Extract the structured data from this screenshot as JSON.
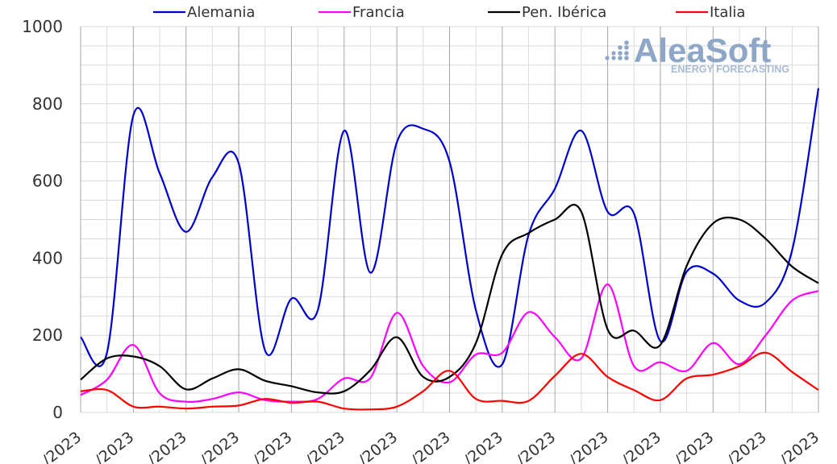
{
  "watermark": {
    "brand": "AleaSoft",
    "tagline": "ENERGY FORECASTING",
    "color": "#8fa7c6"
  },
  "chart_data": {
    "type": "line",
    "title": "",
    "xlabel": "",
    "ylabel": "",
    "ylim": [
      0,
      1000
    ],
    "yticks": [
      0,
      200,
      400,
      600,
      800,
      1000
    ],
    "grid": true,
    "legend_position": "top",
    "x_tick_labels": [
      "/2023",
      "/2023",
      "/2023",
      "/2023",
      "/2023",
      "/2023",
      "/2023",
      "/2023",
      "/2023",
      "/2023",
      "/2023",
      "/2023",
      "/2023",
      "/2023",
      "/2023"
    ],
    "series": [
      {
        "name": "Alemania",
        "color": "#0000cc",
        "values": [
          195,
          155,
          770,
          620,
          468,
          610,
          645,
          160,
          295,
          265,
          730,
          362,
          700,
          735,
          650,
          265,
          125,
          460,
          580,
          730,
          520,
          515,
          185,
          365,
          360,
          290,
          285,
          420,
          840
        ]
      },
      {
        "name": "Francia",
        "color": "#ff00ff",
        "values": [
          45,
          85,
          175,
          50,
          28,
          35,
          52,
          32,
          28,
          35,
          88,
          90,
          258,
          120,
          78,
          150,
          155,
          260,
          195,
          140,
          332,
          120,
          130,
          108,
          180,
          125,
          200,
          290,
          315
        ]
      },
      {
        "name": "Pen. Ibérica",
        "color": "#000000",
        "values": [
          85,
          140,
          145,
          120,
          60,
          88,
          112,
          82,
          68,
          52,
          55,
          110,
          195,
          92,
          92,
          180,
          410,
          465,
          500,
          520,
          215,
          212,
          175,
          380,
          490,
          500,
          450,
          378,
          335
        ]
      },
      {
        "name": "Italia",
        "color": "#ff0000",
        "values": [
          55,
          58,
          15,
          15,
          10,
          15,
          18,
          35,
          25,
          28,
          10,
          8,
          15,
          55,
          108,
          35,
          30,
          30,
          95,
          152,
          92,
          58,
          32,
          88,
          98,
          120,
          155,
          105,
          58
        ]
      }
    ]
  }
}
